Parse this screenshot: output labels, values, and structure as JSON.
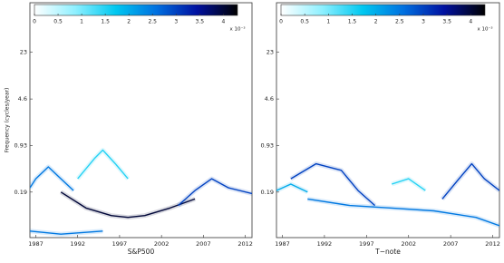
{
  "chart_data": [
    {
      "type": "spectrogram",
      "xlabel": "S&P500",
      "ylabel": "Frequency (cycles/year)",
      "xlim": [
        1986.3,
        2012.8
      ],
      "xticks": [
        1987,
        1992,
        1997,
        2002,
        2007,
        2012
      ],
      "ylim": [
        0.04,
        124
      ],
      "yticks": [
        0.19,
        0.93,
        4.6,
        23
      ],
      "log_y": true,
      "clim": [
        0,
        4.3
      ],
      "cticks": [
        0,
        0.5,
        1,
        1.5,
        2,
        2.5,
        3,
        3.5,
        4
      ],
      "colorbar_multiplier": "x 10⁻³",
      "colormap": [
        "#ffffff",
        "#8ff0ff",
        "#00c8f0",
        "#0070e0",
        "#0010a0",
        "#000000"
      ],
      "ridges": [
        {
          "x": [
            1986.3,
            1987,
            1988.5,
            1990,
            1991.5
          ],
          "y": [
            0.22,
            0.3,
            0.45,
            0.3,
            0.2
          ],
          "value": 2.5
        },
        {
          "x": [
            1990,
            1993,
            1996,
            1998,
            2000,
            2003,
            2006
          ],
          "y": [
            0.19,
            0.11,
            0.085,
            0.08,
            0.085,
            0.11,
            0.15
          ],
          "value": 4
        },
        {
          "x": [
            2004,
            2006,
            2008,
            2010,
            2012.8
          ],
          "y": [
            0.12,
            0.2,
            0.3,
            0.22,
            0.18
          ],
          "value": 3
        },
        {
          "x": [
            1992,
            1994,
            1995,
            1996.5,
            1998
          ],
          "y": [
            0.3,
            0.6,
            0.8,
            0.5,
            0.3
          ],
          "value": 1.5
        },
        {
          "x": [
            1986.3,
            1990,
            1995
          ],
          "y": [
            0.05,
            0.045,
            0.05
          ],
          "value": 2.5
        }
      ]
    },
    {
      "type": "spectrogram",
      "xlabel": "T−note",
      "xlim": [
        1986.3,
        2012.8
      ],
      "xticks": [
        1987,
        1992,
        1997,
        2002,
        2007,
        2012
      ],
      "ylim": [
        0.04,
        124
      ],
      "yticks": [
        0.19,
        0.93,
        4.6,
        23
      ],
      "log_y": true,
      "clim": [
        0,
        4.3
      ],
      "cticks": [
        0,
        0.5,
        1,
        1.5,
        2,
        2.5,
        3,
        3.5,
        4
      ],
      "colorbar_multiplier": "x 10⁻³",
      "colormap": [
        "#ffffff",
        "#8ff0ff",
        "#00c8f0",
        "#0070e0",
        "#0010a0",
        "#000000"
      ],
      "ridges": [
        {
          "x": [
            1986.3,
            1988,
            1990
          ],
          "y": [
            0.2,
            0.25,
            0.19
          ],
          "value": 2
        },
        {
          "x": [
            1988,
            1991,
            1994,
            1996,
            1998
          ],
          "y": [
            0.3,
            0.5,
            0.4,
            0.2,
            0.12
          ],
          "value": 3
        },
        {
          "x": [
            1990,
            1995,
            2000,
            2005,
            2010,
            2012.8
          ],
          "y": [
            0.15,
            0.12,
            0.11,
            0.1,
            0.08,
            0.06
          ],
          "value": 2.5
        },
        {
          "x": [
            2006,
            2008,
            2009.5,
            2011,
            2012.8
          ],
          "y": [
            0.15,
            0.3,
            0.5,
            0.3,
            0.2
          ],
          "value": 3
        },
        {
          "x": [
            2000,
            2002,
            2004
          ],
          "y": [
            0.25,
            0.3,
            0.2
          ],
          "value": 1.5
        }
      ]
    }
  ]
}
